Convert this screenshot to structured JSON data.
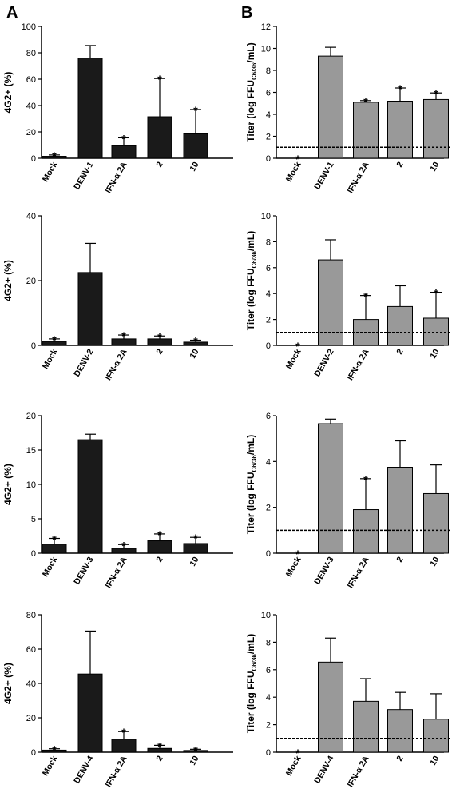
{
  "panel_labels": [
    "A",
    "B"
  ],
  "chart_data": [
    {
      "type": "bar",
      "panel": "A",
      "row": 1,
      "ylabel": "4G2+ (%)",
      "ylim": [
        0,
        100
      ],
      "yticks": [
        0,
        20,
        40,
        60,
        80,
        100
      ],
      "categories": [
        "Mock",
        "DENV-1",
        "IFN-α 2A",
        "2",
        "10"
      ],
      "values": [
        1.5,
        76,
        9.5,
        31.5,
        18.5
      ],
      "errors": [
        1,
        9.5,
        6,
        29,
        18.5
      ],
      "significant": [
        true,
        false,
        true,
        true,
        true
      ],
      "color": "#1a1a1a"
    },
    {
      "type": "bar",
      "panel": "B",
      "row": 1,
      "ylabel": "Titer (log FFU",
      "ylabel_sub": "C6/36",
      "ylabel_end": "/mL)",
      "ylim": [
        0,
        12
      ],
      "yticks": [
        0,
        2,
        4,
        6,
        8,
        10,
        12
      ],
      "categories": [
        "Mock",
        "DENV-1",
        "IFN-α 2A",
        "2",
        "10"
      ],
      "values": [
        0,
        9.3,
        5.1,
        5.2,
        5.35
      ],
      "errors": [
        0,
        0.8,
        0.15,
        1.2,
        0.6
      ],
      "significant": [
        true,
        false,
        true,
        true,
        true
      ],
      "detection_limit": 1,
      "color": "#999999"
    },
    {
      "type": "bar",
      "panel": "A",
      "row": 2,
      "ylabel": "4G2+ (%)",
      "ylim": [
        0,
        40
      ],
      "yticks": [
        0,
        20,
        40
      ],
      "categories": [
        "Mock",
        "DENV-2",
        "IFN-α 2A",
        "2",
        "10"
      ],
      "values": [
        1.2,
        22.5,
        2.0,
        2.0,
        1.0
      ],
      "errors": [
        0.8,
        9,
        1.2,
        0.9,
        0.6
      ],
      "significant": [
        true,
        false,
        true,
        true,
        true
      ],
      "color": "#1a1a1a"
    },
    {
      "type": "bar",
      "panel": "B",
      "row": 2,
      "ylabel": "Titer (log FFU",
      "ylabel_sub": "C6/36",
      "ylabel_end": "/mL)",
      "ylim": [
        0,
        10
      ],
      "yticks": [
        0,
        2,
        4,
        6,
        8,
        10
      ],
      "categories": [
        "Mock",
        "DENV-2",
        "IFN-α 2A",
        "2",
        "10"
      ],
      "values": [
        0,
        6.6,
        2.0,
        3.0,
        2.1
      ],
      "errors": [
        0,
        1.55,
        1.85,
        1.6,
        2.0
      ],
      "significant": [
        true,
        false,
        true,
        false,
        true
      ],
      "detection_limit": 1,
      "color": "#999999"
    },
    {
      "type": "bar",
      "panel": "A",
      "row": 3,
      "ylabel": "4G2+ (%)",
      "ylim": [
        0,
        20
      ],
      "yticks": [
        0,
        5,
        10,
        15,
        20
      ],
      "categories": [
        "Mock",
        "DENV-3",
        "IFN-α 2A",
        "2",
        "10"
      ],
      "values": [
        1.3,
        16.5,
        0.7,
        1.8,
        1.4
      ],
      "errors": [
        0.85,
        0.8,
        0.55,
        1.0,
        0.9
      ],
      "significant": [
        true,
        false,
        true,
        true,
        true
      ],
      "color": "#1a1a1a"
    },
    {
      "type": "bar",
      "panel": "B",
      "row": 3,
      "ylabel": "Titer (log FFU",
      "ylabel_sub": "C6/36",
      "ylabel_end": "/mL)",
      "ylim": [
        0,
        6
      ],
      "yticks": [
        0,
        2,
        4,
        6
      ],
      "categories": [
        "Mock",
        "DENV-3",
        "IFN-α 2A",
        "2",
        "10"
      ],
      "values": [
        0,
        5.65,
        1.9,
        3.75,
        2.6
      ],
      "errors": [
        0,
        0.2,
        1.35,
        1.15,
        1.25
      ],
      "significant": [
        true,
        false,
        true,
        false,
        false
      ],
      "detection_limit": 1,
      "color": "#999999"
    },
    {
      "type": "bar",
      "panel": "A",
      "row": 4,
      "ylabel": "4G2+ (%)",
      "ylim": [
        0,
        80
      ],
      "yticks": [
        0,
        20,
        40,
        60,
        80
      ],
      "categories": [
        "Mock",
        "DENV-4",
        "IFN-α 2A",
        "2",
        "10"
      ],
      "values": [
        1.2,
        45.5,
        7.5,
        2.2,
        1.0
      ],
      "errors": [
        0.8,
        25,
        4.5,
        1.8,
        0.7
      ],
      "significant": [
        true,
        false,
        true,
        true,
        true
      ],
      "color": "#1a1a1a"
    },
    {
      "type": "bar",
      "panel": "B",
      "row": 4,
      "ylabel": "Titer (log FFU",
      "ylabel_sub": "C6/36",
      "ylabel_end": "/mL)",
      "ylim": [
        0,
        10
      ],
      "yticks": [
        0,
        2,
        4,
        6,
        8,
        10
      ],
      "categories": [
        "Mock",
        "DENV-4",
        "IFN-α 2A",
        "2",
        "10"
      ],
      "values": [
        0,
        6.55,
        3.7,
        3.1,
        2.4
      ],
      "errors": [
        0,
        1.75,
        1.65,
        1.25,
        1.85
      ],
      "significant": [
        true,
        false,
        false,
        false,
        false
      ],
      "detection_limit": 1,
      "color": "#999999"
    }
  ]
}
